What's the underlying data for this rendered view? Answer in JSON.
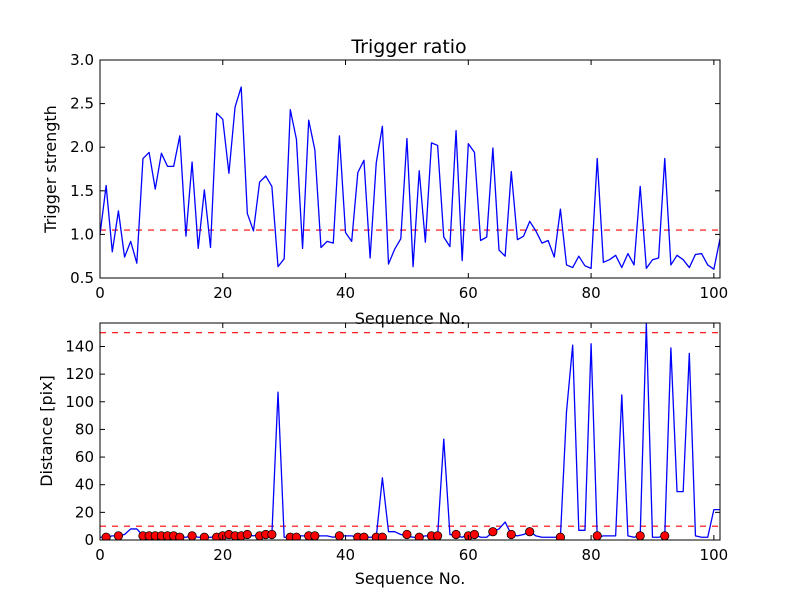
{
  "chart_data": [
    {
      "type": "line",
      "title": "Trigger ratio",
      "xlabel": "Sequence No.",
      "ylabel": "Trigger strength",
      "xlim": [
        0,
        101
      ],
      "ylim": [
        0.5,
        3.0
      ],
      "x_ticks": [
        "0",
        "20",
        "40",
        "60",
        "80",
        "100"
      ],
      "y_ticks": [
        "0.5",
        "1.0",
        "1.5",
        "2.0",
        "2.5",
        "3.0"
      ],
      "grid": false,
      "colors": {
        "line": "#0000ff",
        "threshold": "#ff0000"
      },
      "threshold": 1.05,
      "series": [
        {
          "x": [
            0,
            1,
            2,
            3,
            4,
            5,
            6,
            7,
            8,
            9,
            10,
            11,
            12,
            13,
            14,
            15,
            16,
            17,
            18,
            19,
            20,
            21,
            22,
            23,
            24,
            25,
            26,
            27,
            28,
            29,
            30,
            31,
            32,
            33,
            34,
            35,
            36,
            37,
            38,
            39,
            40,
            41,
            42,
            43,
            44,
            45,
            46,
            47,
            48,
            49,
            50,
            51,
            52,
            53,
            54,
            55,
            56,
            57,
            58,
            59,
            60,
            61,
            62,
            63,
            64,
            65,
            66,
            67,
            68,
            69,
            70,
            71,
            72,
            73,
            74,
            75,
            76,
            77,
            78,
            79,
            80,
            81,
            82,
            83,
            84,
            85,
            86,
            87,
            88,
            89,
            90,
            91,
            92,
            93,
            94,
            95,
            96,
            97,
            98,
            99,
            100,
            101
          ],
          "values": [
            1.0,
            1.56,
            0.8,
            1.27,
            0.74,
            0.92,
            0.67,
            1.87,
            1.94,
            1.52,
            1.93,
            1.78,
            1.78,
            2.13,
            0.98,
            1.83,
            0.84,
            1.51,
            0.85,
            2.39,
            2.32,
            1.7,
            2.46,
            2.69,
            1.24,
            1.04,
            1.6,
            1.67,
            1.55,
            0.63,
            0.72,
            2.43,
            2.09,
            0.84,
            2.31,
            1.97,
            0.85,
            0.92,
            0.9,
            2.13,
            1.02,
            0.92,
            1.71,
            1.85,
            0.73,
            1.82,
            2.24,
            0.66,
            0.83,
            0.95,
            2.1,
            0.63,
            1.73,
            0.91,
            2.05,
            2.02,
            0.97,
            0.86,
            2.19,
            0.7,
            2.04,
            1.94,
            0.93,
            0.97,
            1.99,
            0.82,
            0.75,
            1.72,
            0.94,
            0.98,
            1.15,
            1.04,
            0.9,
            0.93,
            0.74,
            1.29,
            0.65,
            0.62,
            0.75,
            0.64,
            0.61,
            1.87,
            0.68,
            0.71,
            0.76,
            0.62,
            0.78,
            0.65,
            1.55,
            0.61,
            0.71,
            0.73,
            1.87,
            0.65,
            0.76,
            0.71,
            0.62,
            0.77,
            0.78,
            0.65,
            0.6,
            0.95
          ]
        }
      ]
    },
    {
      "type": "line",
      "title": "",
      "xlabel": "Sequence No.",
      "ylabel": "Distance [pix]",
      "xlim": [
        0,
        101
      ],
      "ylim": [
        0,
        157
      ],
      "x_ticks": [
        "0",
        "20",
        "40",
        "60",
        "80",
        "100"
      ],
      "y_ticks": [
        "0",
        "20",
        "40",
        "60",
        "80",
        "100",
        "120",
        "140"
      ],
      "grid": false,
      "colors": {
        "line": "#0000ff",
        "threshold": "#ff0000",
        "marker": "#ff0000"
      },
      "thresholds": [
        150,
        10
      ],
      "series": [
        {
          "x": [
            0,
            1,
            2,
            3,
            4,
            5,
            6,
            7,
            8,
            9,
            10,
            11,
            12,
            13,
            14,
            15,
            16,
            17,
            18,
            19,
            20,
            21,
            22,
            23,
            24,
            25,
            26,
            27,
            28,
            29,
            30,
            31,
            32,
            33,
            34,
            35,
            36,
            37,
            38,
            39,
            40,
            41,
            42,
            43,
            44,
            45,
            46,
            47,
            48,
            49,
            50,
            51,
            52,
            53,
            54,
            55,
            56,
            57,
            58,
            59,
            60,
            61,
            62,
            63,
            64,
            65,
            66,
            67,
            68,
            69,
            70,
            71,
            72,
            73,
            74,
            75,
            76,
            77,
            78,
            79,
            80,
            81,
            82,
            83,
            84,
            85,
            86,
            87,
            88,
            89,
            90,
            91,
            92,
            93,
            94,
            95,
            96,
            97,
            98,
            99,
            100,
            101
          ],
          "values": [
            2,
            2,
            3,
            3,
            4,
            8,
            8,
            3,
            3,
            3,
            3,
            3,
            3,
            2,
            2,
            3,
            2,
            2,
            2,
            2,
            3,
            4,
            3,
            3,
            4,
            3,
            4,
            4,
            4,
            107,
            2,
            2,
            3,
            3,
            3,
            3,
            3,
            3,
            2,
            3,
            3,
            3,
            2,
            2,
            2,
            2,
            45,
            6,
            6,
            4,
            3,
            2,
            2,
            3,
            3,
            3,
            73,
            4,
            3,
            2,
            4,
            4,
            2,
            2,
            6,
            8,
            13,
            4,
            3,
            4,
            6,
            3,
            2,
            2,
            2,
            2,
            93,
            141,
            7,
            7,
            142,
            2,
            3,
            3,
            3,
            105,
            3,
            2,
            3,
            157,
            2,
            2,
            3,
            139,
            35,
            35,
            135,
            3,
            2,
            2,
            22,
            22
          ]
        },
        {
          "name": "",
          "marker": "circle",
          "x": [
            1,
            3,
            7,
            8,
            9,
            10,
            11,
            12,
            13,
            15,
            17,
            19,
            20,
            21,
            22,
            23,
            24,
            26,
            27,
            28,
            31,
            32,
            34,
            35,
            39,
            42,
            43,
            45,
            46,
            50,
            52,
            54,
            55,
            58,
            60,
            61,
            64,
            67,
            70,
            75,
            81,
            88,
            92
          ],
          "values": [
            2,
            3,
            3,
            3,
            3,
            3,
            3,
            3,
            2,
            3,
            2,
            2,
            3,
            4,
            3,
            3,
            4,
            3,
            4,
            4,
            2,
            2,
            3,
            3,
            3,
            2,
            2,
            2,
            2,
            4,
            2,
            3,
            3,
            4,
            3,
            4,
            6,
            4,
            6,
            2,
            3,
            3,
            3
          ]
        }
      ]
    }
  ]
}
